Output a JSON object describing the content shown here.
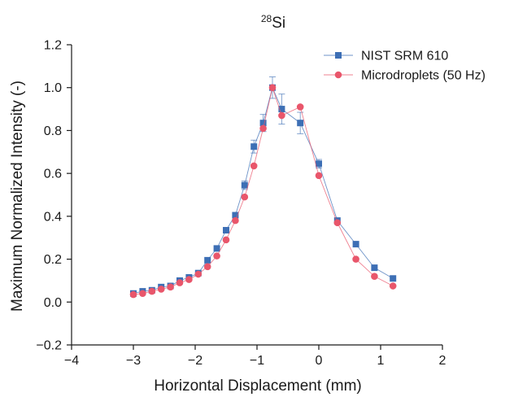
{
  "chart_data": {
    "type": "line",
    "title_sup": "28",
    "title_main": "Si",
    "xlabel": "Horizontal Displacement (mm)",
    "ylabel": "Maximum Normalized Intensity (-)",
    "xlim": [
      -4,
      2
    ],
    "ylim": [
      -0.2,
      1.2
    ],
    "xticks": [
      -4,
      -3,
      -2,
      -1,
      0,
      1,
      2
    ],
    "yticks": [
      -0.2,
      0.0,
      0.2,
      0.4,
      0.6,
      0.8,
      1.0,
      1.2
    ],
    "xtick_labels": [
      "−4",
      "−3",
      "−2",
      "−1",
      "0",
      "1",
      "2"
    ],
    "ytick_labels": [
      "−0.2",
      "0.0",
      "0.2",
      "0.4",
      "0.6",
      "0.8",
      "1.0",
      "1.2"
    ],
    "grid": false,
    "legend_position": "top-right",
    "series": [
      {
        "name": "NIST SRM 610",
        "color": "#3d6fb5",
        "marker": "square",
        "x": [
          -3.0,
          -2.85,
          -2.7,
          -2.55,
          -2.4,
          -2.25,
          -2.1,
          -1.95,
          -1.8,
          -1.65,
          -1.5,
          -1.35,
          -1.2,
          -1.05,
          -0.9,
          -0.75,
          -0.6,
          -0.3,
          0.0,
          0.3,
          0.6,
          0.9,
          1.2
        ],
        "y": [
          0.04,
          0.05,
          0.055,
          0.07,
          0.075,
          0.1,
          0.115,
          0.135,
          0.195,
          0.25,
          0.335,
          0.405,
          0.545,
          0.725,
          0.835,
          1.0,
          0.9,
          0.835,
          0.645,
          0.38,
          0.27,
          0.16,
          0.11
        ],
        "error": [
          0,
          0,
          0,
          0,
          0,
          0,
          0,
          0,
          0,
          0,
          0,
          0,
          0.02,
          0.03,
          0.04,
          0.05,
          0.07,
          0.05,
          0.02,
          0,
          0,
          0,
          0
        ]
      },
      {
        "name": "Microdroplets (50 Hz)",
        "color": "#e9566b",
        "marker": "circle",
        "x": [
          -3.0,
          -2.85,
          -2.7,
          -2.55,
          -2.4,
          -2.25,
          -2.1,
          -1.95,
          -1.8,
          -1.65,
          -1.5,
          -1.35,
          -1.2,
          -1.05,
          -0.9,
          -0.75,
          -0.6,
          -0.3,
          0.0,
          0.3,
          0.6,
          0.9,
          1.2
        ],
        "y": [
          0.035,
          0.04,
          0.05,
          0.06,
          0.07,
          0.09,
          0.105,
          0.13,
          0.165,
          0.215,
          0.29,
          0.38,
          0.49,
          0.635,
          0.81,
          1.0,
          0.87,
          0.91,
          0.59,
          0.37,
          0.2,
          0.12,
          0.075
        ]
      }
    ]
  }
}
